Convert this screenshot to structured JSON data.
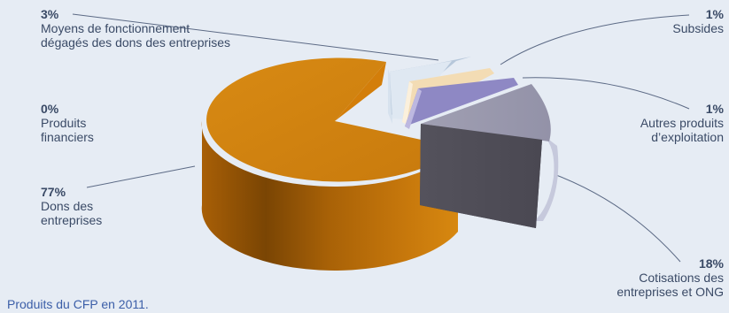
{
  "chart_data": {
    "type": "pie",
    "title": "",
    "caption": "Produits du CFP en 2011.",
    "slices": [
      {
        "key": "moyens",
        "label": "Moyens de fonctionnement\ndégagés des dons des entreprises",
        "value": 3,
        "percent_label": "3%",
        "color": "#b5c9dc"
      },
      {
        "key": "subsides",
        "label": "Subsides",
        "value": 1,
        "percent_label": "1%",
        "color": "#f3dcb4"
      },
      {
        "key": "autres",
        "label": "Autres produits\nd’exploitation",
        "value": 1,
        "percent_label": "1%",
        "color": "#8c86c2"
      },
      {
        "key": "cotisations",
        "label": "Cotisations des\nentreprises et ONG",
        "value": 18,
        "percent_label": "18%",
        "color": "#55535d"
      },
      {
        "key": "financiers",
        "label": "Produits\nfinanciers",
        "value": 0,
        "percent_label": "0%",
        "color": "#d7830c"
      },
      {
        "key": "dons",
        "label": "Dons des\nentreprises",
        "value": 77,
        "percent_label": "77%",
        "color": "#d98a14"
      }
    ]
  },
  "labels": {
    "moyens": {
      "pct": "3%",
      "text": "Moyens de fonctionnement\ndégagés des dons des entreprises"
    },
    "financiers": {
      "pct": "0%",
      "text": "Produits\nfinanciers"
    },
    "dons": {
      "pct": "77%",
      "text": "Dons des\nentreprises"
    },
    "subsides": {
      "pct": "1%",
      "text": "Subsides"
    },
    "autres": {
      "pct": "1%",
      "text": "Autres produits\nd’exploitation"
    },
    "cotisations": {
      "pct": "18%",
      "text": "Cotisations des\nentreprises et ONG"
    }
  },
  "caption": "Produits du CFP en 2011."
}
